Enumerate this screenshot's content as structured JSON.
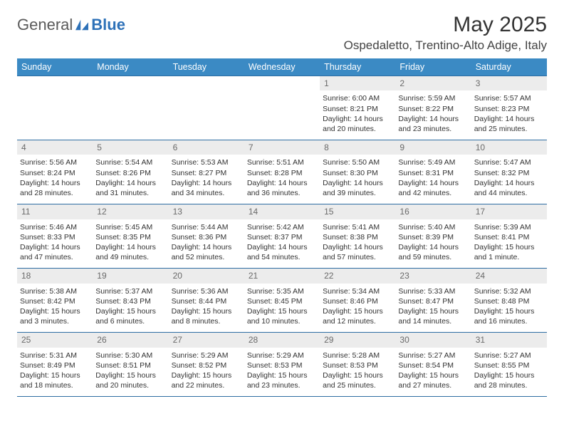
{
  "brand": {
    "word1": "General",
    "word2": "Blue"
  },
  "title": "May 2025",
  "location": "Ospedaletto, Trentino-Alto Adige, Italy",
  "headers": [
    "Sunday",
    "Monday",
    "Tuesday",
    "Wednesday",
    "Thursday",
    "Friday",
    "Saturday"
  ],
  "colors": {
    "header_bg": "#3b8ac4",
    "header_text": "#ffffff",
    "rule": "#2d6da3",
    "daynum_bg": "#ececec",
    "daynum_text": "#6a6a6a",
    "body_text": "#333333",
    "logo_gray": "#5a5a5a",
    "logo_blue": "#2d71b8"
  },
  "typography": {
    "title_fontsize": 30,
    "location_fontsize": 17,
    "header_fontsize": 12.5,
    "daynum_fontsize": 12,
    "body_fontsize": 10.5,
    "logo_fontsize": 22
  },
  "weeks": [
    [
      {
        "n": "",
        "sr": "",
        "ss": "",
        "dl": ""
      },
      {
        "n": "",
        "sr": "",
        "ss": "",
        "dl": ""
      },
      {
        "n": "",
        "sr": "",
        "ss": "",
        "dl": ""
      },
      {
        "n": "",
        "sr": "",
        "ss": "",
        "dl": ""
      },
      {
        "n": "1",
        "sr": "Sunrise: 6:00 AM",
        "ss": "Sunset: 8:21 PM",
        "dl": "Daylight: 14 hours and 20 minutes."
      },
      {
        "n": "2",
        "sr": "Sunrise: 5:59 AM",
        "ss": "Sunset: 8:22 PM",
        "dl": "Daylight: 14 hours and 23 minutes."
      },
      {
        "n": "3",
        "sr": "Sunrise: 5:57 AM",
        "ss": "Sunset: 8:23 PM",
        "dl": "Daylight: 14 hours and 25 minutes."
      }
    ],
    [
      {
        "n": "4",
        "sr": "Sunrise: 5:56 AM",
        "ss": "Sunset: 8:24 PM",
        "dl": "Daylight: 14 hours and 28 minutes."
      },
      {
        "n": "5",
        "sr": "Sunrise: 5:54 AM",
        "ss": "Sunset: 8:26 PM",
        "dl": "Daylight: 14 hours and 31 minutes."
      },
      {
        "n": "6",
        "sr": "Sunrise: 5:53 AM",
        "ss": "Sunset: 8:27 PM",
        "dl": "Daylight: 14 hours and 34 minutes."
      },
      {
        "n": "7",
        "sr": "Sunrise: 5:51 AM",
        "ss": "Sunset: 8:28 PM",
        "dl": "Daylight: 14 hours and 36 minutes."
      },
      {
        "n": "8",
        "sr": "Sunrise: 5:50 AM",
        "ss": "Sunset: 8:30 PM",
        "dl": "Daylight: 14 hours and 39 minutes."
      },
      {
        "n": "9",
        "sr": "Sunrise: 5:49 AM",
        "ss": "Sunset: 8:31 PM",
        "dl": "Daylight: 14 hours and 42 minutes."
      },
      {
        "n": "10",
        "sr": "Sunrise: 5:47 AM",
        "ss": "Sunset: 8:32 PM",
        "dl": "Daylight: 14 hours and 44 minutes."
      }
    ],
    [
      {
        "n": "11",
        "sr": "Sunrise: 5:46 AM",
        "ss": "Sunset: 8:33 PM",
        "dl": "Daylight: 14 hours and 47 minutes."
      },
      {
        "n": "12",
        "sr": "Sunrise: 5:45 AM",
        "ss": "Sunset: 8:35 PM",
        "dl": "Daylight: 14 hours and 49 minutes."
      },
      {
        "n": "13",
        "sr": "Sunrise: 5:44 AM",
        "ss": "Sunset: 8:36 PM",
        "dl": "Daylight: 14 hours and 52 minutes."
      },
      {
        "n": "14",
        "sr": "Sunrise: 5:42 AM",
        "ss": "Sunset: 8:37 PM",
        "dl": "Daylight: 14 hours and 54 minutes."
      },
      {
        "n": "15",
        "sr": "Sunrise: 5:41 AM",
        "ss": "Sunset: 8:38 PM",
        "dl": "Daylight: 14 hours and 57 minutes."
      },
      {
        "n": "16",
        "sr": "Sunrise: 5:40 AM",
        "ss": "Sunset: 8:39 PM",
        "dl": "Daylight: 14 hours and 59 minutes."
      },
      {
        "n": "17",
        "sr": "Sunrise: 5:39 AM",
        "ss": "Sunset: 8:41 PM",
        "dl": "Daylight: 15 hours and 1 minute."
      }
    ],
    [
      {
        "n": "18",
        "sr": "Sunrise: 5:38 AM",
        "ss": "Sunset: 8:42 PM",
        "dl": "Daylight: 15 hours and 3 minutes."
      },
      {
        "n": "19",
        "sr": "Sunrise: 5:37 AM",
        "ss": "Sunset: 8:43 PM",
        "dl": "Daylight: 15 hours and 6 minutes."
      },
      {
        "n": "20",
        "sr": "Sunrise: 5:36 AM",
        "ss": "Sunset: 8:44 PM",
        "dl": "Daylight: 15 hours and 8 minutes."
      },
      {
        "n": "21",
        "sr": "Sunrise: 5:35 AM",
        "ss": "Sunset: 8:45 PM",
        "dl": "Daylight: 15 hours and 10 minutes."
      },
      {
        "n": "22",
        "sr": "Sunrise: 5:34 AM",
        "ss": "Sunset: 8:46 PM",
        "dl": "Daylight: 15 hours and 12 minutes."
      },
      {
        "n": "23",
        "sr": "Sunrise: 5:33 AM",
        "ss": "Sunset: 8:47 PM",
        "dl": "Daylight: 15 hours and 14 minutes."
      },
      {
        "n": "24",
        "sr": "Sunrise: 5:32 AM",
        "ss": "Sunset: 8:48 PM",
        "dl": "Daylight: 15 hours and 16 minutes."
      }
    ],
    [
      {
        "n": "25",
        "sr": "Sunrise: 5:31 AM",
        "ss": "Sunset: 8:49 PM",
        "dl": "Daylight: 15 hours and 18 minutes."
      },
      {
        "n": "26",
        "sr": "Sunrise: 5:30 AM",
        "ss": "Sunset: 8:51 PM",
        "dl": "Daylight: 15 hours and 20 minutes."
      },
      {
        "n": "27",
        "sr": "Sunrise: 5:29 AM",
        "ss": "Sunset: 8:52 PM",
        "dl": "Daylight: 15 hours and 22 minutes."
      },
      {
        "n": "28",
        "sr": "Sunrise: 5:29 AM",
        "ss": "Sunset: 8:53 PM",
        "dl": "Daylight: 15 hours and 23 minutes."
      },
      {
        "n": "29",
        "sr": "Sunrise: 5:28 AM",
        "ss": "Sunset: 8:53 PM",
        "dl": "Daylight: 15 hours and 25 minutes."
      },
      {
        "n": "30",
        "sr": "Sunrise: 5:27 AM",
        "ss": "Sunset: 8:54 PM",
        "dl": "Daylight: 15 hours and 27 minutes."
      },
      {
        "n": "31",
        "sr": "Sunrise: 5:27 AM",
        "ss": "Sunset: 8:55 PM",
        "dl": "Daylight: 15 hours and 28 minutes."
      }
    ]
  ]
}
